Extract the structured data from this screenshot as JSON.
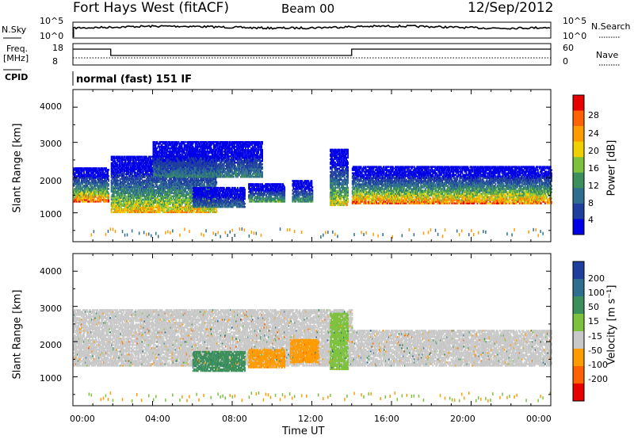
{
  "header": {
    "radar": "Fort Hays West (fitACF)",
    "beam": "Beam 00",
    "date": "12/Sep/2012"
  },
  "status_panels": {
    "sky": {
      "label": "N.Sky",
      "ticks": [
        "10^5",
        "10^0"
      ]
    },
    "search": {
      "label": "N.Search",
      "ticks": [
        "10^5",
        "10^0"
      ]
    },
    "freq": {
      "label": "Freq.",
      "unit": "[MHz]",
      "ticks": [
        "18",
        "8"
      ]
    },
    "nave": {
      "label": "Nave",
      "ticks": [
        "60",
        "0"
      ]
    },
    "cpid": {
      "label": "CPID",
      "mode": "normal (fast) 151 IF"
    }
  },
  "chart_data": [
    {
      "type": "heatmap",
      "name": "power",
      "xlabel": "Time UT",
      "ylabel": "Slant Range [km]",
      "xlim": [
        0,
        24
      ],
      "ylim": [
        180,
        4500
      ],
      "xticks": [
        "00:00",
        "04:00",
        "08:00",
        "12:00",
        "16:00",
        "20:00",
        "00:00"
      ],
      "yticks": [
        1000,
        2000,
        3000,
        4000
      ],
      "colorbar": {
        "label": "Power [dB]",
        "ticks": [
          4,
          8,
          12,
          16,
          20,
          24,
          28
        ],
        "range": [
          0,
          30
        ],
        "colors": [
          "#0000e6",
          "#1e3fa0",
          "#2e6e8e",
          "#3a8f5a",
          "#7dc23c",
          "#f0d000",
          "#ff9b00",
          "#ff6200",
          "#e60000"
        ]
      },
      "regions": [
        {
          "t_start": 0.0,
          "t_end": 1.8,
          "range_low": 1300,
          "range_high": 2250,
          "peak_db": 28
        },
        {
          "t_start": 1.9,
          "t_end": 7.2,
          "range_low": 1000,
          "range_high": 2600,
          "peak_db": 24
        },
        {
          "t_start": 4.0,
          "t_end": 9.5,
          "range_low": 2000,
          "range_high": 3000,
          "peak_db": 12
        },
        {
          "t_start": 6.0,
          "t_end": 8.6,
          "range_low": 1150,
          "range_high": 1700,
          "peak_db": 10
        },
        {
          "t_start": 8.8,
          "t_end": 10.6,
          "range_low": 1300,
          "range_high": 1800,
          "peak_db": 16
        },
        {
          "t_start": 11.0,
          "t_end": 12.0,
          "range_low": 1300,
          "range_high": 1900,
          "peak_db": 14
        },
        {
          "t_start": 12.9,
          "t_end": 13.8,
          "range_low": 1200,
          "range_high": 2800,
          "peak_db": 22
        },
        {
          "t_start": 14.0,
          "t_end": 24.0,
          "range_low": 1250,
          "range_high": 2300,
          "peak_db": 28
        }
      ]
    },
    {
      "type": "heatmap",
      "name": "velocity",
      "xlabel": "Time UT",
      "ylabel": "Slant Range [km]",
      "xlim": [
        0,
        24
      ],
      "ylim": [
        180,
        4500
      ],
      "xticks": [
        "00:00",
        "04:00",
        "08:00",
        "12:00",
        "16:00",
        "20:00",
        "00:00"
      ],
      "yticks": [
        1000,
        2000,
        3000,
        4000
      ],
      "colorbar": {
        "label": "Velocity [m s⁻¹]",
        "ticks": [
          200,
          100,
          50,
          15,
          -15,
          -50,
          -100,
          -200
        ],
        "colors": [
          "#1e3fa0",
          "#2e6e8e",
          "#3a8f5a",
          "#7dc23c",
          "#c8c8c8",
          "#ff9b00",
          "#ff6200",
          "#e60000"
        ]
      },
      "regions": [
        {
          "t_start": 0.0,
          "t_end": 14.0,
          "range_low": 1300,
          "range_high": 2900,
          "velocity": 0
        },
        {
          "t_start": 6.0,
          "t_end": 8.6,
          "range_low": 1150,
          "range_high": 1700,
          "velocity": 40
        },
        {
          "t_start": 8.8,
          "t_end": 10.6,
          "range_low": 1250,
          "range_high": 1750,
          "velocity": -45
        },
        {
          "t_start": 10.9,
          "t_end": 12.3,
          "range_low": 1400,
          "range_high": 2050,
          "velocity": -50
        },
        {
          "t_start": 12.9,
          "t_end": 13.8,
          "range_low": 1200,
          "range_high": 2800,
          "velocity": 20
        },
        {
          "t_start": 14.0,
          "t_end": 24.0,
          "range_low": 1300,
          "range_high": 2300,
          "velocity": 0
        }
      ]
    }
  ]
}
